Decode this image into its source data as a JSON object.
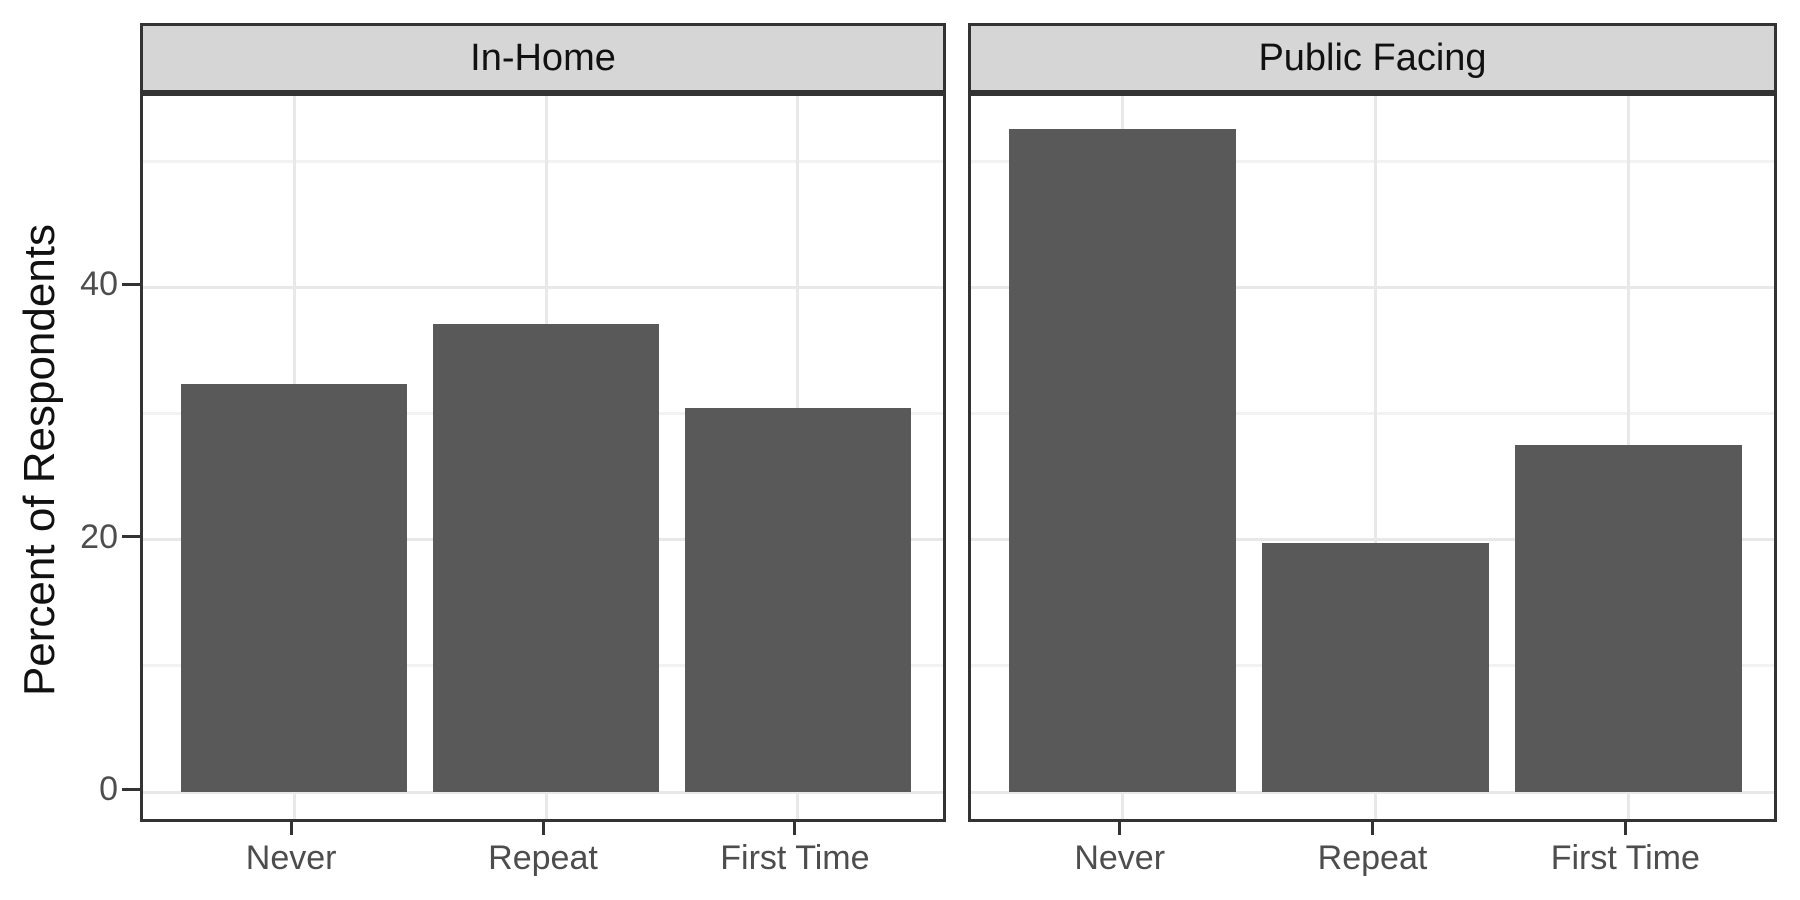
{
  "figure": {
    "background": "#FFFFFF"
  },
  "chart_data": {
    "type": "bar",
    "title": "",
    "xlabel": "",
    "ylabel": "Percent of Respondents",
    "categories": [
      "Never",
      "Repeat",
      "First Time"
    ],
    "facets": [
      {
        "label": "In-Home",
        "values": [
          32.3,
          37.1,
          30.4
        ]
      },
      {
        "label": "Public Facing",
        "values": [
          52.5,
          19.7,
          27.5
        ]
      }
    ],
    "yticks": [
      0,
      20,
      40
    ],
    "yticks_minor": [
      10,
      30,
      50
    ],
    "ylim": [
      -2.6,
      55.15
    ],
    "grid": "on",
    "legend": "none",
    "bar_color": "#595959",
    "strip_bg": "#D6D6D6",
    "panel_border_color": "#333333",
    "grid_major_color": "#E8E8E8",
    "grid_minor_color": "#F2F2F2",
    "axis_text_color": "#4D4D4D",
    "axis_title_color": "#111111",
    "tick_color": "#333333"
  }
}
